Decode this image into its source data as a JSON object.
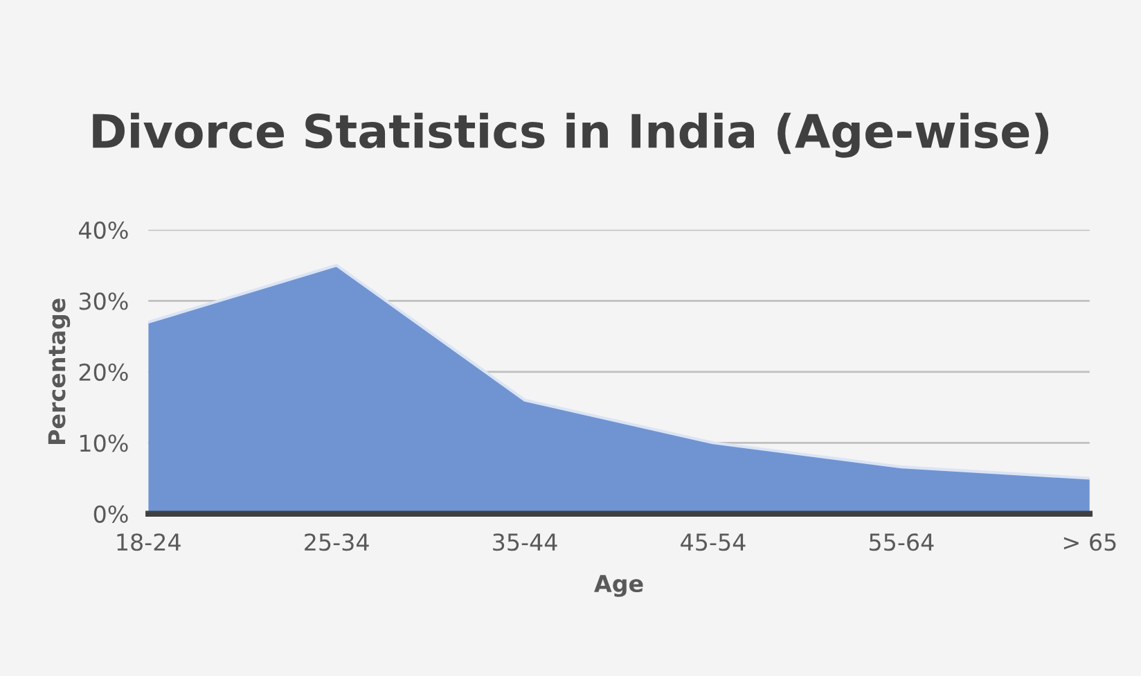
{
  "chart_data": {
    "type": "area",
    "title": "Divorce Statistics in India (Age-wise)",
    "xlabel": "Age",
    "ylabel": "Percentage",
    "categories": [
      "18-24",
      "25-34",
      "35-44",
      "45-54",
      "55-64",
      "> 65"
    ],
    "series": [
      {
        "color": "#7094d2",
        "values": [
          27,
          35,
          16,
          10,
          6.6,
          5
        ]
      }
    ],
    "ylim": [
      0,
      40
    ],
    "yticks": [
      {
        "value": 0,
        "label": "0%"
      },
      {
        "value": 10,
        "label": "10%"
      },
      {
        "value": 20,
        "label": "20%"
      },
      {
        "value": 30,
        "label": "30%"
      },
      {
        "value": 40,
        "label": "40%"
      }
    ],
    "grid": "y",
    "legend": false
  }
}
